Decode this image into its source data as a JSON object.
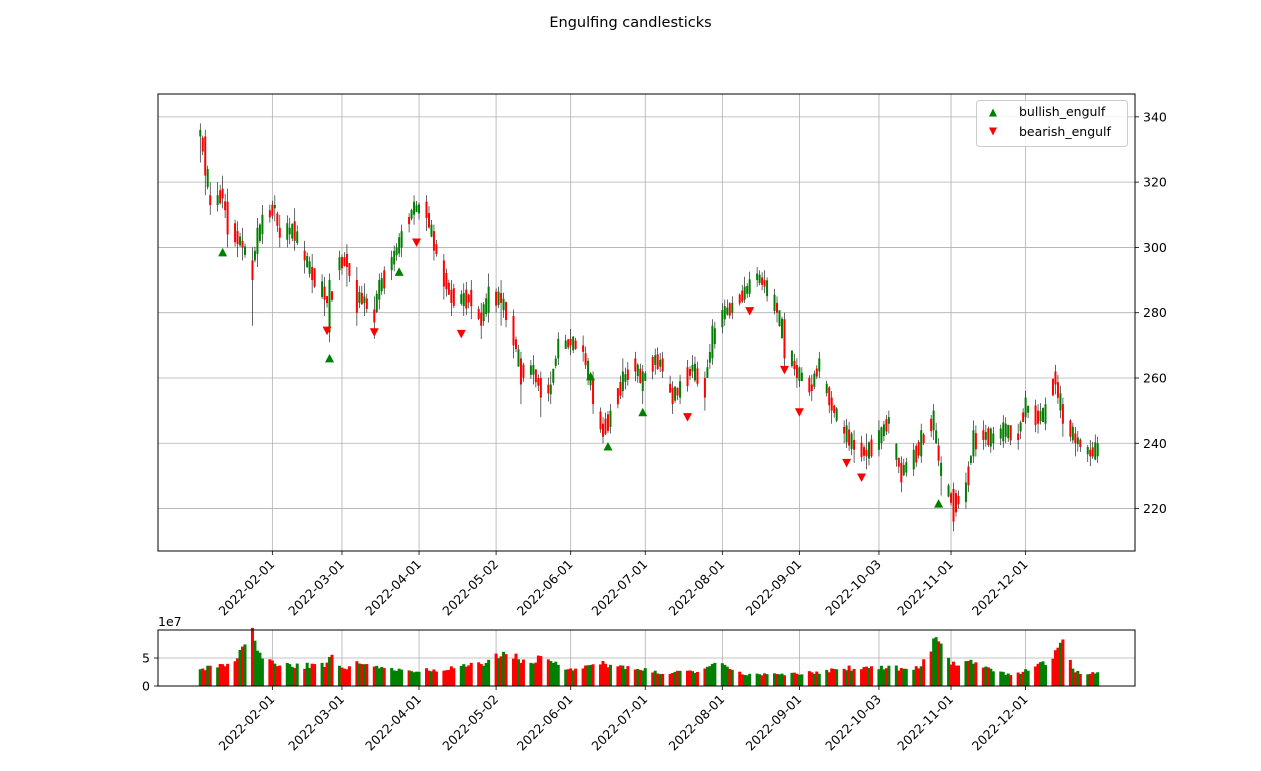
{
  "title": "Engulfing candlesticks",
  "colors": {
    "up": "#008000",
    "down": "#ff0000",
    "grid": "#b0b0b0",
    "axis": "#000000"
  },
  "chart_data": [
    {
      "type": "candlestick",
      "title": "Engulfing candlesticks",
      "ylim": [
        207,
        347
      ],
      "y_ticks": [
        220,
        240,
        260,
        280,
        300,
        320,
        340
      ],
      "x_range": [
        "2021-12-17",
        "2023-01-14"
      ],
      "x_ticks": [
        "2022-02-01",
        "2022-03-01",
        "2022-04-01",
        "2022-05-02",
        "2022-06-01",
        "2022-07-01",
        "2022-08-01",
        "2022-09-01",
        "2022-10-03",
        "2022-11-01",
        "2022-12-01"
      ],
      "grid": true,
      "legend_position": "top-right",
      "legend": [
        {
          "label": "bullish_engulf",
          "marker": "triangle-up",
          "color": "#008000"
        },
        {
          "label": "bearish_engulf",
          "marker": "triangle-down",
          "color": "#ff0000"
        }
      ],
      "anchors": [
        [
          "2022-01-03",
          334,
          336,
          338,
          326
        ],
        [
          "2022-01-05",
          334,
          322,
          336,
          316
        ],
        [
          "2022-01-07",
          316,
          313,
          320,
          310
        ],
        [
          "2022-01-10",
          313,
          316,
          320,
          311
        ],
        [
          "2022-01-12",
          318,
          315,
          322,
          312
        ],
        [
          "2022-01-14",
          314,
          304,
          318,
          300
        ],
        [
          "2022-01-18",
          305,
          301,
          308,
          297
        ],
        [
          "2022-01-20",
          302,
          300,
          306,
          296
        ],
        [
          "2022-01-24",
          296,
          290,
          300,
          276
        ],
        [
          "2022-01-26",
          298,
          306,
          309,
          294
        ],
        [
          "2022-01-28",
          304,
          310,
          313,
          301
        ],
        [
          "2022-02-02",
          312,
          313,
          316,
          308
        ],
        [
          "2022-02-04",
          306,
          303,
          310,
          300
        ],
        [
          "2022-02-08",
          304,
          306,
          309,
          301
        ],
        [
          "2022-02-10",
          308,
          302,
          312,
          299
        ],
        [
          "2022-02-14",
          299,
          296,
          302,
          292
        ],
        [
          "2022-02-17",
          294,
          290,
          298,
          286
        ],
        [
          "2022-02-22",
          288,
          284,
          291,
          279
        ],
        [
          "2022-02-24",
          274,
          290,
          292,
          271
        ],
        [
          "2022-02-28",
          293,
          297,
          299,
          290
        ],
        [
          "2022-03-03",
          298,
          294,
          301,
          288
        ],
        [
          "2022-03-07",
          290,
          280,
          294,
          276
        ],
        [
          "2022-03-10",
          283,
          285,
          289,
          279
        ],
        [
          "2022-03-14",
          281,
          277,
          285,
          272
        ],
        [
          "2022-03-16",
          284,
          290,
          292,
          281
        ],
        [
          "2022-03-21",
          293,
          297,
          299,
          290
        ],
        [
          "2022-03-25",
          300,
          305,
          307,
          297
        ],
        [
          "2022-03-30",
          310,
          314,
          316,
          307
        ],
        [
          "2022-04-04",
          314,
          309,
          316,
          305
        ],
        [
          "2022-04-07",
          305,
          299,
          307,
          296
        ],
        [
          "2022-04-11",
          296,
          288,
          298,
          284
        ],
        [
          "2022-04-14",
          287,
          283,
          290,
          279
        ],
        [
          "2022-04-19",
          282,
          286,
          289,
          279
        ],
        [
          "2022-04-22",
          287,
          282,
          290,
          278
        ],
        [
          "2022-04-26",
          280,
          276,
          283,
          272
        ],
        [
          "2022-04-29",
          280,
          288,
          292,
          277
        ],
        [
          "2022-05-04",
          286,
          283,
          290,
          276
        ],
        [
          "2022-05-09",
          279,
          270,
          281,
          266
        ],
        [
          "2022-05-12",
          266,
          258,
          268,
          252
        ],
        [
          "2022-05-17",
          261,
          264,
          267,
          258
        ],
        [
          "2022-05-20",
          260,
          254,
          262,
          248
        ],
        [
          "2022-05-24",
          255,
          258,
          262,
          252
        ],
        [
          "2022-05-27",
          266,
          272,
          274,
          264
        ],
        [
          "2022-06-01",
          272,
          270,
          275,
          267
        ],
        [
          "2022-06-06",
          270,
          268,
          273,
          265
        ],
        [
          "2022-06-10",
          260,
          252,
          262,
          249
        ],
        [
          "2022-06-14",
          246,
          242,
          248,
          240
        ],
        [
          "2022-06-17",
          245,
          250,
          252,
          243
        ],
        [
          "2022-06-22",
          256,
          262,
          266,
          254
        ],
        [
          "2022-06-27",
          266,
          262,
          268,
          259
        ],
        [
          "2022-06-30",
          256,
          262,
          264,
          252
        ],
        [
          "2022-07-05",
          264,
          267,
          269,
          261
        ],
        [
          "2022-07-08",
          266,
          262,
          268,
          260
        ],
        [
          "2022-07-12",
          257,
          252,
          259,
          249
        ],
        [
          "2022-07-15",
          254,
          259,
          261,
          252
        ],
        [
          "2022-07-20",
          262,
          264,
          267,
          260
        ],
        [
          "2022-07-25",
          260,
          254,
          262,
          250
        ],
        [
          "2022-07-28",
          266,
          276,
          278,
          264
        ],
        [
          "2022-08-02",
          278,
          282,
          284,
          276
        ],
        [
          "2022-08-05",
          280,
          283,
          285,
          278
        ],
        [
          "2022-08-10",
          284,
          288,
          291,
          283
        ],
        [
          "2022-08-15",
          290,
          292,
          294,
          288
        ],
        [
          "2022-08-18",
          290,
          288,
          293,
          286
        ],
        [
          "2022-08-23",
          283,
          280,
          285,
          277
        ],
        [
          "2022-08-26",
          278,
          266,
          280,
          263
        ],
        [
          "2022-08-31",
          264,
          260,
          266,
          257
        ],
        [
          "2022-09-06",
          258,
          256,
          261,
          253
        ],
        [
          "2022-09-09",
          262,
          266,
          268,
          260
        ],
        [
          "2022-09-14",
          254,
          250,
          256,
          246
        ],
        [
          "2022-09-19",
          245,
          243,
          247,
          240
        ],
        [
          "2022-09-23",
          241,
          238,
          244,
          234
        ],
        [
          "2022-09-28",
          238,
          236,
          243,
          232
        ],
        [
          "2022-10-03",
          238,
          244,
          247,
          236
        ],
        [
          "2022-10-07",
          246,
          248,
          250,
          243
        ],
        [
          "2022-10-12",
          234,
          228,
          236,
          225
        ],
        [
          "2022-10-17",
          232,
          238,
          240,
          230
        ],
        [
          "2022-10-20",
          236,
          244,
          246,
          234
        ],
        [
          "2022-10-25",
          244,
          250,
          252,
          241
        ],
        [
          "2022-10-28",
          230,
          234,
          236,
          224
        ],
        [
          "2022-11-02",
          226,
          216,
          228,
          213
        ],
        [
          "2022-11-07",
          222,
          228,
          231,
          220
        ],
        [
          "2022-11-10",
          236,
          244,
          247,
          234
        ],
        [
          "2022-11-14",
          244,
          241,
          247,
          238
        ],
        [
          "2022-11-18",
          240,
          243,
          245,
          238
        ],
        [
          "2022-11-23",
          242,
          246,
          248,
          240
        ],
        [
          "2022-11-28",
          243,
          241,
          246,
          238
        ],
        [
          "2022-12-01",
          248,
          254,
          256,
          246
        ],
        [
          "2022-12-06",
          250,
          246,
          252,
          243
        ],
        [
          "2022-12-09",
          246,
          252,
          254,
          244
        ],
        [
          "2022-12-13",
          262,
          258,
          264,
          255
        ],
        [
          "2022-12-16",
          252,
          246,
          254,
          242
        ],
        [
          "2022-12-21",
          243,
          240,
          245,
          236
        ],
        [
          "2022-12-27",
          238,
          236,
          241,
          233
        ],
        [
          "2022-12-30",
          236,
          240,
          242,
          234
        ]
      ],
      "bullish_engulf": [
        {
          "date": "2022-01-12",
          "y": 298.5
        },
        {
          "date": "2022-02-24",
          "y": 266
        },
        {
          "date": "2022-03-24",
          "y": 292.5
        },
        {
          "date": "2022-06-09",
          "y": 260.5
        },
        {
          "date": "2022-06-16",
          "y": 239
        },
        {
          "date": "2022-06-30",
          "y": 249.5
        },
        {
          "date": "2022-10-27",
          "y": 221.5
        }
      ],
      "bearish_engulf": [
        {
          "date": "2022-02-23",
          "y": 274.5
        },
        {
          "date": "2022-03-14",
          "y": 274
        },
        {
          "date": "2022-03-31",
          "y": 301.5
        },
        {
          "date": "2022-04-18",
          "y": 273.5
        },
        {
          "date": "2022-07-18",
          "y": 248
        },
        {
          "date": "2022-08-12",
          "y": 280.5
        },
        {
          "date": "2022-08-26",
          "y": 262.5
        },
        {
          "date": "2022-09-01",
          "y": 249.5
        },
        {
          "date": "2022-09-20",
          "y": 234
        },
        {
          "date": "2022-09-26",
          "y": 229.5
        }
      ]
    },
    {
      "type": "bar",
      "ylabel_offset": "1e7",
      "ylim": [
        0,
        10
      ],
      "y_ticks": [
        0,
        5
      ],
      "x_ticks": [
        "2022-02-01",
        "2022-03-01",
        "2022-04-01",
        "2022-05-02",
        "2022-06-01",
        "2022-07-01",
        "2022-08-01",
        "2022-09-01",
        "2022-10-03",
        "2022-11-01",
        "2022-12-01"
      ],
      "grid": true,
      "volume_anchors": [
        [
          "2022-01-03",
          3.0
        ],
        [
          "2022-01-10",
          3.8
        ],
        [
          "2022-01-17",
          4.2
        ],
        [
          "2022-01-21",
          8.5
        ],
        [
          "2022-01-24",
          9.2
        ],
        [
          "2022-01-26",
          6.5
        ],
        [
          "2022-01-31",
          4.2
        ],
        [
          "2022-02-10",
          3.5
        ],
        [
          "2022-02-23",
          3.8
        ],
        [
          "2022-02-25",
          5.6
        ],
        [
          "2022-03-02",
          3.2
        ],
        [
          "2022-03-09",
          4.5
        ],
        [
          "2022-03-16",
          3.0
        ],
        [
          "2022-03-30",
          2.6
        ],
        [
          "2022-04-12",
          3.2
        ],
        [
          "2022-04-26",
          3.8
        ],
        [
          "2022-05-05",
          6.2
        ],
        [
          "2022-05-12",
          4.6
        ],
        [
          "2022-05-20",
          4.8
        ],
        [
          "2022-05-31",
          3.0
        ],
        [
          "2022-06-13",
          4.2
        ],
        [
          "2022-06-24",
          3.2
        ],
        [
          "2022-07-06",
          2.5
        ],
        [
          "2022-07-22",
          2.6
        ],
        [
          "2022-07-29",
          4.4
        ],
        [
          "2022-08-10",
          2.2
        ],
        [
          "2022-08-24",
          2.0
        ],
        [
          "2022-09-06",
          2.4
        ],
        [
          "2022-09-20",
          3.2
        ],
        [
          "2022-10-10",
          3.2
        ],
        [
          "2022-10-20",
          3.4
        ],
        [
          "2022-10-26",
          8.2
        ],
        [
          "2022-11-01",
          3.8
        ],
        [
          "2022-11-10",
          4.5
        ],
        [
          "2022-11-25",
          1.8
        ],
        [
          "2022-12-02",
          3.0
        ],
        [
          "2022-12-12",
          4.5
        ],
        [
          "2022-12-15",
          8.8
        ],
        [
          "2022-12-21",
          2.5
        ],
        [
          "2022-12-30",
          2.2
        ]
      ]
    }
  ]
}
